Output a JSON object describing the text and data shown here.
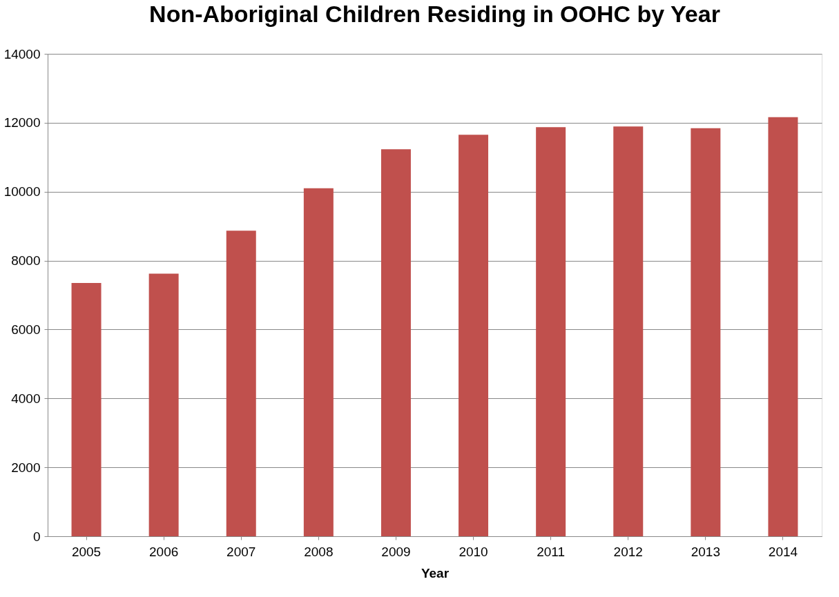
{
  "chart_data": {
    "type": "bar",
    "title": "Non-Aboriginal Children Residing in OOHC by Year",
    "xlabel": "Year",
    "categories": [
      "2005",
      "2006",
      "2007",
      "2008",
      "2009",
      "2010",
      "2011",
      "2012",
      "2013",
      "2014"
    ],
    "values": [
      7350,
      7620,
      8870,
      10100,
      11230,
      11650,
      11870,
      11890,
      11840,
      12160
    ],
    "color": "#c0504d",
    "ylim": [
      0,
      14000
    ],
    "yticks": [
      0,
      2000,
      4000,
      6000,
      8000,
      10000,
      12000,
      14000
    ],
    "grid": "y"
  }
}
